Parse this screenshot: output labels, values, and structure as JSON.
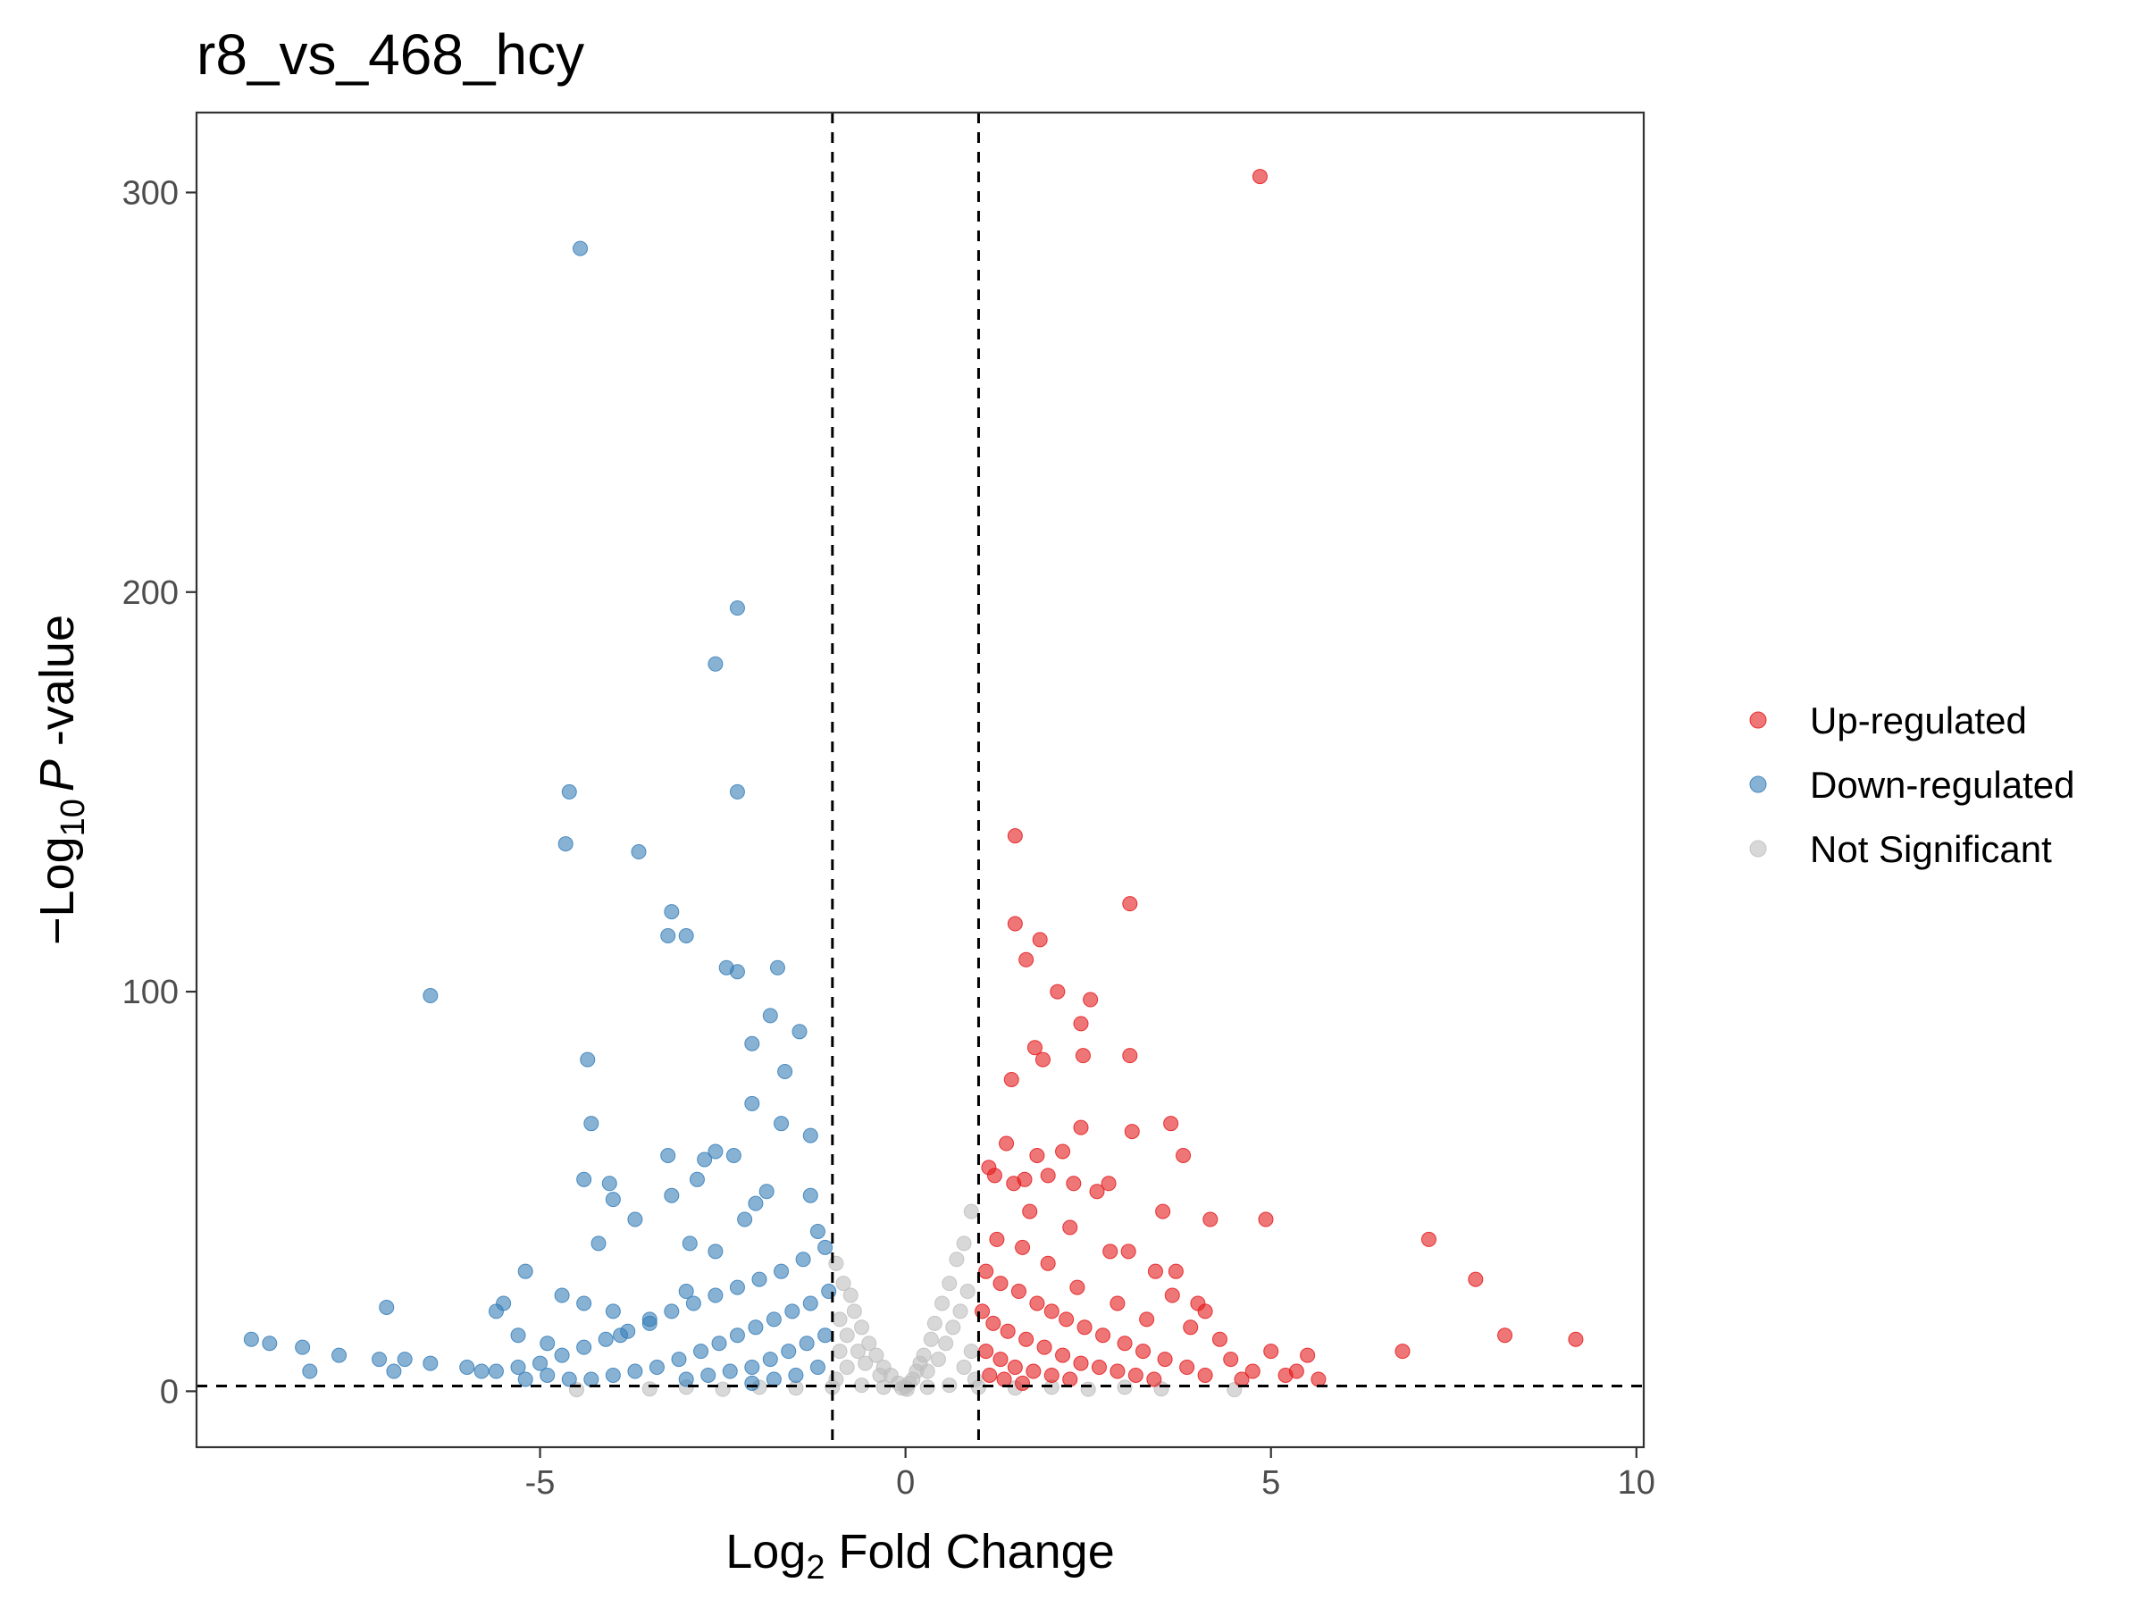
{
  "chart_data": {
    "type": "scatter",
    "title": "r8_vs_468_hcy",
    "xlabel": {
      "base": "Log",
      "sub": "2",
      "rest": " Fold Change"
    },
    "ylabel": {
      "prefix": "−Log",
      "sub": "10",
      "italic": "P",
      "rest": " -value"
    },
    "xlim": [
      -9.7,
      10.1
    ],
    "ylim": [
      -14,
      320
    ],
    "xticks": [
      -5,
      0,
      5,
      10
    ],
    "xtick_labels": [
      "-5",
      "0",
      "5",
      "10"
    ],
    "yticks": [
      0,
      100,
      200,
      300
    ],
    "ytick_labels": [
      "0",
      "100",
      "200",
      "300"
    ],
    "thresholds": {
      "log2fc": [
        -1,
        1
      ],
      "neg_log10_p": 1.3
    },
    "grid": false,
    "legend_position": "right",
    "colors": {
      "up": "#E41A1C",
      "down": "#377EB8",
      "ns": "#BEBEBE"
    },
    "series": [
      {
        "name": "Up-regulated",
        "color": "#E41A1C",
        "points": [
          [
            4.85,
            304
          ],
          [
            1.5,
            139
          ],
          [
            3.07,
            122
          ],
          [
            1.5,
            117
          ],
          [
            1.84,
            113
          ],
          [
            1.65,
            108
          ],
          [
            2.08,
            100
          ],
          [
            2.53,
            98
          ],
          [
            2.4,
            92
          ],
          [
            1.77,
            86
          ],
          [
            1.88,
            83
          ],
          [
            2.43,
            84
          ],
          [
            3.07,
            84
          ],
          [
            1.45,
            78
          ],
          [
            3.63,
            67
          ],
          [
            3.1,
            65
          ],
          [
            2.4,
            66
          ],
          [
            2.15,
            60
          ],
          [
            1.38,
            62
          ],
          [
            3.8,
            59
          ],
          [
            1.8,
            59
          ],
          [
            1.14,
            56
          ],
          [
            1.22,
            54
          ],
          [
            1.48,
            52
          ],
          [
            1.63,
            53
          ],
          [
            1.95,
            54
          ],
          [
            2.3,
            52
          ],
          [
            2.78,
            52
          ],
          [
            2.62,
            50
          ],
          [
            3.52,
            45
          ],
          [
            4.17,
            43
          ],
          [
            4.93,
            43
          ],
          [
            7.16,
            38
          ],
          [
            1.7,
            45
          ],
          [
            2.25,
            41
          ],
          [
            2.8,
            35
          ],
          [
            3.05,
            35
          ],
          [
            3.42,
            30
          ],
          [
            3.7,
            30
          ],
          [
            7.8,
            28
          ],
          [
            4.0,
            22
          ],
          [
            8.2,
            14
          ],
          [
            9.17,
            13
          ],
          [
            6.8,
            10
          ],
          [
            5.5,
            9
          ],
          [
            5.0,
            10
          ],
          [
            4.3,
            13
          ],
          [
            1.25,
            38
          ],
          [
            1.6,
            36
          ],
          [
            1.95,
            32
          ],
          [
            2.35,
            26
          ],
          [
            2.9,
            22
          ],
          [
            3.3,
            18
          ],
          [
            3.9,
            16
          ],
          [
            4.45,
            8
          ],
          [
            4.75,
            5
          ],
          [
            5.2,
            4
          ],
          [
            5.65,
            3
          ],
          [
            1.1,
            30
          ],
          [
            1.3,
            27
          ],
          [
            1.55,
            25
          ],
          [
            1.8,
            22
          ],
          [
            2.0,
            20
          ],
          [
            2.2,
            18
          ],
          [
            2.45,
            16
          ],
          [
            2.7,
            14
          ],
          [
            3.0,
            12
          ],
          [
            3.25,
            10
          ],
          [
            3.55,
            8
          ],
          [
            3.85,
            6
          ],
          [
            4.1,
            4
          ],
          [
            1.05,
            20
          ],
          [
            1.2,
            17
          ],
          [
            1.4,
            15
          ],
          [
            1.65,
            13
          ],
          [
            1.9,
            11
          ],
          [
            2.15,
            9
          ],
          [
            2.4,
            7
          ],
          [
            2.65,
            6
          ],
          [
            2.9,
            5
          ],
          [
            3.15,
            4
          ],
          [
            3.4,
            3
          ],
          [
            1.1,
            10
          ],
          [
            1.3,
            8
          ],
          [
            1.5,
            6
          ],
          [
            1.75,
            5
          ],
          [
            2.0,
            4
          ],
          [
            2.25,
            3
          ],
          [
            1.15,
            4
          ],
          [
            1.35,
            3
          ],
          [
            1.6,
            2
          ],
          [
            4.6,
            3
          ],
          [
            5.35,
            5
          ],
          [
            3.65,
            24
          ],
          [
            4.1,
            20
          ]
        ]
      },
      {
        "name": "Down-regulated",
        "color": "#377EB8",
        "points": [
          [
            -4.45,
            286
          ],
          [
            -2.3,
            196
          ],
          [
            -2.6,
            182
          ],
          [
            -4.6,
            150
          ],
          [
            -2.3,
            150
          ],
          [
            -4.65,
            137
          ],
          [
            -3.65,
            135
          ],
          [
            -3.2,
            120
          ],
          [
            -3.25,
            114
          ],
          [
            -3.0,
            114
          ],
          [
            -2.45,
            106
          ],
          [
            -2.3,
            105
          ],
          [
            -1.75,
            106
          ],
          [
            -6.5,
            99
          ],
          [
            -1.85,
            94
          ],
          [
            -1.45,
            90
          ],
          [
            -2.1,
            87
          ],
          [
            -4.35,
            83
          ],
          [
            -1.65,
            80
          ],
          [
            -2.1,
            72
          ],
          [
            -4.3,
            67
          ],
          [
            -1.7,
            67
          ],
          [
            -1.3,
            64
          ],
          [
            -2.6,
            60
          ],
          [
            -3.25,
            59
          ],
          [
            -2.75,
            58
          ],
          [
            -2.35,
            59
          ],
          [
            -4.4,
            53
          ],
          [
            -4.05,
            52
          ],
          [
            -1.9,
            50
          ],
          [
            -2.85,
            53
          ],
          [
            -2.05,
            47
          ],
          [
            -3.2,
            49
          ],
          [
            -4.0,
            48
          ],
          [
            -1.3,
            49
          ],
          [
            -3.7,
            43
          ],
          [
            -2.2,
            43
          ],
          [
            -2.95,
            37
          ],
          [
            -1.2,
            40
          ],
          [
            -4.2,
            37
          ],
          [
            -5.2,
            30
          ],
          [
            -2.6,
            35
          ],
          [
            -3.0,
            25
          ],
          [
            -4.0,
            20
          ],
          [
            -4.7,
            24
          ],
          [
            -5.5,
            22
          ],
          [
            -5.6,
            20
          ],
          [
            -7.1,
            21
          ],
          [
            -4.4,
            22
          ],
          [
            -3.5,
            18
          ],
          [
            -3.9,
            14
          ],
          [
            -5.3,
            14
          ],
          [
            -4.9,
            12
          ],
          [
            -8.95,
            13
          ],
          [
            -8.7,
            12
          ],
          [
            -8.25,
            11
          ],
          [
            -7.75,
            9
          ],
          [
            -7.2,
            8
          ],
          [
            -6.85,
            8
          ],
          [
            -6.5,
            7
          ],
          [
            -6.0,
            6
          ],
          [
            -5.6,
            5
          ],
          [
            -8.15,
            5
          ],
          [
            -7.0,
            5
          ],
          [
            -1.1,
            36
          ],
          [
            -1.4,
            33
          ],
          [
            -1.7,
            30
          ],
          [
            -2.0,
            28
          ],
          [
            -2.3,
            26
          ],
          [
            -2.6,
            24
          ],
          [
            -2.9,
            22
          ],
          [
            -3.2,
            20
          ],
          [
            -3.5,
            17
          ],
          [
            -3.8,
            15
          ],
          [
            -4.1,
            13
          ],
          [
            -4.4,
            11
          ],
          [
            -4.7,
            9
          ],
          [
            -5.0,
            7
          ],
          [
            -5.3,
            6
          ],
          [
            -1.05,
            25
          ],
          [
            -1.3,
            22
          ],
          [
            -1.55,
            20
          ],
          [
            -1.8,
            18
          ],
          [
            -2.05,
            16
          ],
          [
            -2.3,
            14
          ],
          [
            -2.55,
            12
          ],
          [
            -2.8,
            10
          ],
          [
            -3.1,
            8
          ],
          [
            -3.4,
            6
          ],
          [
            -3.7,
            5
          ],
          [
            -4.0,
            4
          ],
          [
            -4.3,
            3
          ],
          [
            -1.1,
            14
          ],
          [
            -1.35,
            12
          ],
          [
            -1.6,
            10
          ],
          [
            -1.85,
            8
          ],
          [
            -2.1,
            6
          ],
          [
            -2.4,
            5
          ],
          [
            -2.7,
            4
          ],
          [
            -3.0,
            3
          ],
          [
            -1.2,
            6
          ],
          [
            -1.5,
            4
          ],
          [
            -1.8,
            3
          ],
          [
            -2.1,
            2
          ],
          [
            -4.6,
            3
          ],
          [
            -4.9,
            4
          ],
          [
            -5.2,
            3
          ],
          [
            -5.8,
            5
          ]
        ]
      },
      {
        "name": "Not Significant",
        "color": "#BEBEBE",
        "points": [
          [
            0.9,
            45
          ],
          [
            0.8,
            37
          ],
          [
            0.7,
            33
          ],
          [
            0.6,
            27
          ],
          [
            0.5,
            22
          ],
          [
            0.4,
            17
          ],
          [
            0.35,
            13
          ],
          [
            0.25,
            9
          ],
          [
            0.2,
            7
          ],
          [
            0.15,
            5
          ],
          [
            0.1,
            3
          ],
          [
            0.05,
            2
          ],
          [
            0.85,
            25
          ],
          [
            0.75,
            20
          ],
          [
            0.65,
            16
          ],
          [
            0.55,
            12
          ],
          [
            0.45,
            8
          ],
          [
            0.3,
            5
          ],
          [
            -0.95,
            32
          ],
          [
            -0.85,
            27
          ],
          [
            -0.75,
            24
          ],
          [
            -0.7,
            20
          ],
          [
            -0.6,
            16
          ],
          [
            -0.5,
            12
          ],
          [
            -0.4,
            9
          ],
          [
            -0.3,
            6
          ],
          [
            -0.2,
            4
          ],
          [
            -0.1,
            2
          ],
          [
            -0.9,
            18
          ],
          [
            -0.8,
            14
          ],
          [
            -0.65,
            10
          ],
          [
            -0.55,
            7
          ],
          [
            -0.35,
            4
          ],
          [
            0.0,
            1
          ],
          [
            0.02,
            0.5
          ],
          [
            -0.05,
            0.8
          ],
          [
            0.3,
            1
          ],
          [
            -0.3,
            1
          ],
          [
            0.6,
            1.5
          ],
          [
            -0.6,
            1.5
          ],
          [
            1.5,
            0.8
          ],
          [
            -1.5,
            0.8
          ],
          [
            2.5,
            0.5
          ],
          [
            -2.5,
            0.5
          ],
          [
            3.5,
            0.6
          ],
          [
            -3.5,
            0.6
          ],
          [
            4.5,
            0.4
          ],
          [
            -4.5,
            0.4
          ],
          [
            1.0,
            1
          ],
          [
            -1.0,
            1
          ],
          [
            2.0,
            1
          ],
          [
            -2.0,
            1
          ],
          [
            3.0,
            1
          ],
          [
            -3.0,
            1
          ],
          [
            0.9,
            10
          ],
          [
            -0.9,
            10
          ],
          [
            0.8,
            6
          ],
          [
            -0.8,
            6
          ],
          [
            0.95,
            3
          ],
          [
            -0.95,
            3
          ]
        ]
      }
    ]
  }
}
